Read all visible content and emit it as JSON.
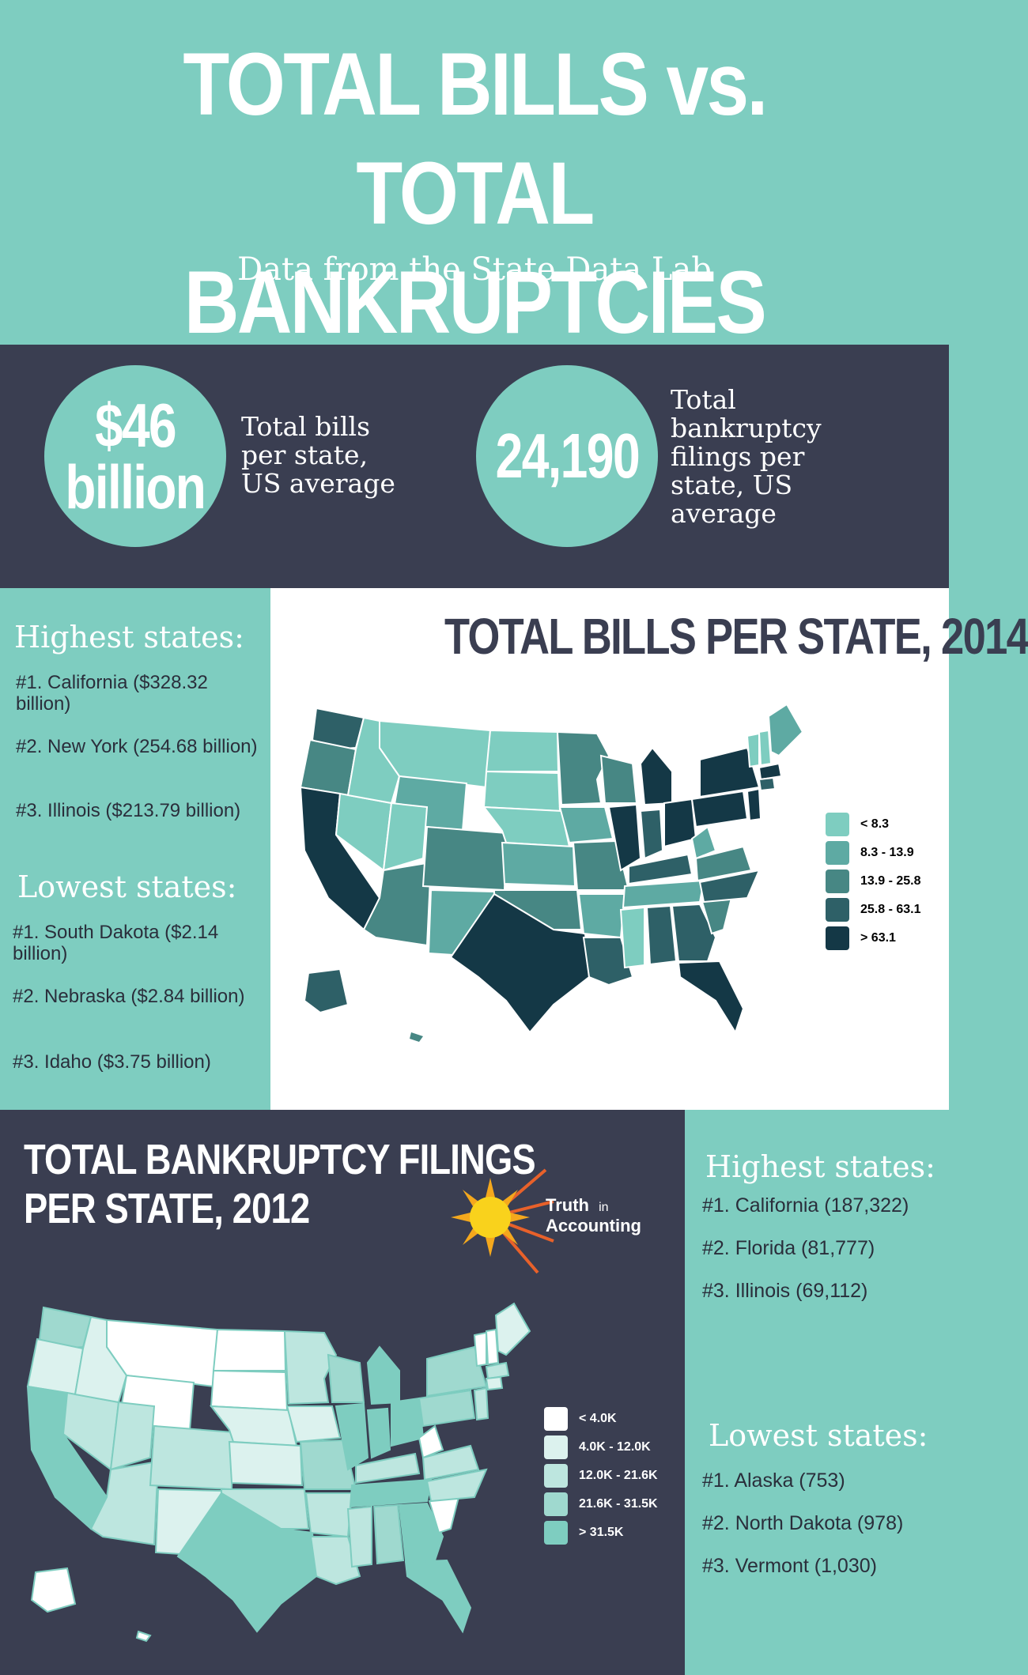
{
  "header": {
    "title_line1": "TOTAL BILLS vs. TOTAL",
    "title_line2": "BANKRUPTCIES",
    "subtitle": "Data from the State Data Lab"
  },
  "stats": {
    "bills": {
      "value_line1": "$46",
      "value_line2": "billion",
      "desc_lines": [
        "Total bills",
        "per state,",
        "US average"
      ]
    },
    "filings": {
      "value": "24,190",
      "desc_lines": [
        "Total",
        "bankruptcy",
        "filings per",
        "state, US",
        "average"
      ]
    }
  },
  "bills_section": {
    "map_title": "TOTAL BILLS PER STATE,  2014",
    "highest_heading": "Highest states:",
    "highest": [
      "#1. California ($328.32 billion)",
      "#2. New York (254.68 billion)",
      "#3. Illinois ($213.79 billion)"
    ],
    "lowest_heading": "Lowest states:",
    "lowest": [
      "#1. South Dakota ($2.14 billion)",
      "#2. Nebraska ($2.84 billion)",
      "#3. Idaho ($3.75 billion)"
    ],
    "legend": [
      {
        "label": "< 8.3",
        "color": "#7ecdc0"
      },
      {
        "label": "8.3 - 13.9",
        "color": "#5eaaa3"
      },
      {
        "label": "13.9 - 25.8",
        "color": "#478784"
      },
      {
        "label": "25.8 - 63.1",
        "color": "#2e6067"
      },
      {
        "label": "> 63.1",
        "color": "#143846"
      }
    ]
  },
  "bankruptcy_section": {
    "map_title_line1": "TOTAL BANKRUPTCY FILINGS",
    "map_title_line2": "PER STATE, 2012",
    "logo_line1": "Truth",
    "logo_line1_small": "in",
    "logo_line2": "Accounting",
    "highest_heading": "Highest states:",
    "highest": [
      "#1. California (187,322)",
      "#2. Florida (81,777)",
      "#3. Illinois (69,112)"
    ],
    "lowest_heading": "Lowest states:",
    "lowest": [
      "#1. Alaska (753)",
      "#2. North Dakota (978)",
      "#3. Vermont (1,030)"
    ],
    "legend": [
      {
        "label": "< 4.0K",
        "color": "#ffffff"
      },
      {
        "label": "4.0K - 12.0K",
        "color": "#dcf2ee"
      },
      {
        "label": "12.0K - 21.6K",
        "color": "#bde6df"
      },
      {
        "label": "21.6K - 31.5K",
        "color": "#9fd9cf"
      },
      {
        "label": "> 31.5K",
        "color": "#7ecdc0"
      }
    ]
  }
}
